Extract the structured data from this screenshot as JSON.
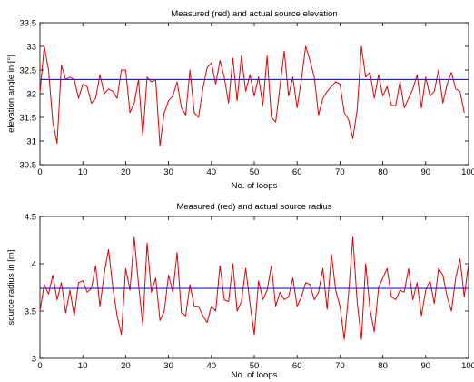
{
  "figure": {
    "background": "#ffffff"
  },
  "chart_data": [
    {
      "type": "line",
      "title": "Measured (red) and actual source elevation",
      "xlabel": "No. of loops",
      "ylabel": "elevation angle in [°]",
      "xlim": [
        0,
        100
      ],
      "ylim": [
        30.5,
        33.5
      ],
      "xticks": [
        "0",
        "10",
        "20",
        "30",
        "40",
        "50",
        "60",
        "70",
        "80",
        "90",
        "100"
      ],
      "yticks": [
        "30.5",
        "31",
        "31.5",
        "32",
        "32.5",
        "33",
        "33.5"
      ],
      "grid": false,
      "series": [
        {
          "color": "#e00000",
          "x": [
            0,
            1,
            2,
            3,
            4,
            5,
            6,
            7,
            8,
            9,
            10,
            11,
            12,
            13,
            14,
            15,
            16,
            17,
            18,
            19,
            20,
            21,
            22,
            23,
            24,
            25,
            26,
            27,
            28,
            29,
            30,
            31,
            32,
            33,
            34,
            35,
            36,
            37,
            38,
            39,
            40,
            41,
            42,
            43,
            44,
            45,
            46,
            47,
            48,
            49,
            50,
            51,
            52,
            53,
            54,
            55,
            56,
            57,
            58,
            59,
            60,
            61,
            62,
            63,
            64,
            65,
            66,
            67,
            68,
            69,
            70,
            71,
            72,
            73,
            74,
            75,
            76,
            77,
            78,
            79,
            80,
            81,
            82,
            83,
            84,
            85,
            86,
            87,
            88,
            89,
            90,
            91,
            92,
            93,
            94,
            95,
            96,
            97,
            98,
            99
          ],
          "values": [
            32.0,
            33.0,
            32.5,
            31.4,
            30.95,
            32.6,
            32.3,
            32.35,
            32.3,
            31.9,
            32.2,
            32.15,
            31.8,
            31.9,
            32.4,
            32.0,
            32.1,
            32.05,
            31.9,
            32.5,
            32.5,
            31.6,
            31.8,
            32.3,
            31.1,
            32.35,
            32.25,
            32.3,
            30.9,
            31.6,
            31.85,
            31.95,
            32.25,
            31.7,
            31.55,
            32.5,
            31.6,
            31.5,
            32.1,
            32.55,
            32.65,
            32.2,
            32.7,
            32.35,
            31.8,
            32.75,
            31.85,
            32.8,
            32.05,
            32.4,
            31.95,
            32.35,
            31.75,
            32.8,
            31.5,
            31.4,
            32.15,
            32.9,
            31.95,
            32.35,
            31.7,
            32.3,
            33.0,
            32.7,
            32.35,
            31.55,
            31.9,
            32.05,
            32.15,
            32.25,
            32.2,
            31.6,
            31.45,
            31.05,
            31.65,
            33.0,
            32.35,
            32.45,
            31.9,
            32.4,
            31.95,
            32.15,
            31.75,
            31.75,
            32.25,
            31.7,
            31.9,
            32.1,
            32.4,
            31.7,
            32.35,
            31.95,
            32.05,
            32.5,
            31.8,
            32.2,
            32.45,
            32.1,
            32.05,
            31.6
          ]
        },
        {
          "color": "#1f1fd0",
          "x": [
            0,
            100
          ],
          "values": [
            32.3,
            32.3
          ]
        }
      ]
    },
    {
      "type": "line",
      "title": "Measured (red) and actual source radius",
      "xlabel": "No. of loops",
      "ylabel": "source radius in [m]",
      "xlim": [
        0,
        100
      ],
      "ylim": [
        3,
        4.5
      ],
      "xticks": [
        "0",
        "10",
        "20",
        "30",
        "40",
        "50",
        "60",
        "70",
        "80",
        "90",
        "100"
      ],
      "yticks": [
        "3",
        "3.5",
        "4",
        "4.5"
      ],
      "grid": false,
      "series": [
        {
          "color": "#e00000",
          "x": [
            0,
            1,
            2,
            3,
            4,
            5,
            6,
            7,
            8,
            9,
            10,
            11,
            12,
            13,
            14,
            15,
            16,
            17,
            18,
            19,
            20,
            21,
            22,
            23,
            24,
            25,
            26,
            27,
            28,
            29,
            30,
            31,
            32,
            33,
            34,
            35,
            36,
            37,
            38,
            39,
            40,
            41,
            42,
            43,
            44,
            45,
            46,
            47,
            48,
            49,
            50,
            51,
            52,
            53,
            54,
            55,
            56,
            57,
            58,
            59,
            60,
            61,
            62,
            63,
            64,
            65,
            66,
            67,
            68,
            69,
            70,
            71,
            72,
            73,
            74,
            75,
            76,
            77,
            78,
            79,
            80,
            81,
            82,
            83,
            84,
            85,
            86,
            87,
            88,
            89,
            90,
            91,
            92,
            93,
            94,
            95,
            96,
            97,
            98,
            99,
            100
          ],
          "values": [
            3.5,
            3.78,
            3.68,
            3.88,
            3.62,
            3.8,
            3.48,
            3.72,
            3.45,
            3.8,
            3.82,
            3.7,
            3.74,
            3.98,
            3.55,
            3.9,
            4.15,
            3.75,
            3.45,
            3.25,
            3.95,
            3.72,
            4.28,
            3.78,
            3.35,
            4.22,
            3.7,
            3.85,
            3.4,
            3.5,
            3.88,
            3.7,
            4.12,
            3.48,
            3.45,
            3.78,
            3.55,
            3.55,
            3.45,
            3.38,
            3.55,
            3.5,
            3.98,
            3.62,
            3.6,
            4.0,
            3.5,
            3.6,
            3.95,
            3.58,
            3.25,
            3.82,
            3.62,
            3.72,
            3.98,
            3.55,
            3.7,
            3.62,
            3.65,
            3.85,
            3.55,
            3.65,
            3.8,
            3.78,
            3.62,
            3.7,
            3.95,
            3.52,
            4.1,
            3.72,
            3.55,
            3.2,
            3.68,
            4.28,
            3.6,
            3.2,
            4.0,
            3.52,
            3.28,
            3.75,
            3.85,
            3.95,
            3.65,
            3.62,
            3.72,
            3.7,
            3.95,
            3.62,
            3.8,
            3.45,
            3.72,
            3.82,
            3.58,
            3.95,
            3.88,
            3.65,
            3.5,
            3.85,
            4.05,
            3.65,
            4.0
          ]
        },
        {
          "color": "#1f1fd0",
          "x": [
            0,
            100
          ],
          "values": [
            3.74,
            3.74
          ]
        }
      ]
    }
  ]
}
